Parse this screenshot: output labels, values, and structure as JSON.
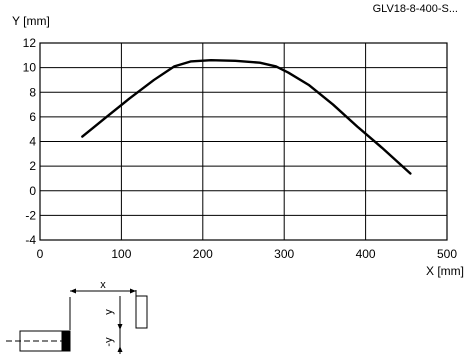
{
  "product_label": "GLV18-8-400-S...",
  "chart_data": {
    "type": "line",
    "xlabel": "X [mm]",
    "ylabel": "Y [mm]",
    "xlim": [
      0,
      500
    ],
    "ylim": [
      -4,
      12
    ],
    "xticks": [
      0,
      100,
      200,
      300,
      400,
      500
    ],
    "yticks": [
      -4,
      -2,
      0,
      2,
      4,
      6,
      8,
      10,
      12
    ],
    "grid": true,
    "series": [
      {
        "x": [
          52,
          80,
          110,
          140,
          165,
          185,
          210,
          240,
          270,
          290,
          305,
          330,
          360,
          390,
          420,
          455
        ],
        "y": [
          4.4,
          5.9,
          7.5,
          9.0,
          10.1,
          10.5,
          10.6,
          10.55,
          10.4,
          10.1,
          9.6,
          8.6,
          7.0,
          5.2,
          3.5,
          1.4
        ]
      }
    ]
  },
  "diagram": {
    "x_label": "x",
    "y_label": "-y",
    "y2_label": "y"
  }
}
